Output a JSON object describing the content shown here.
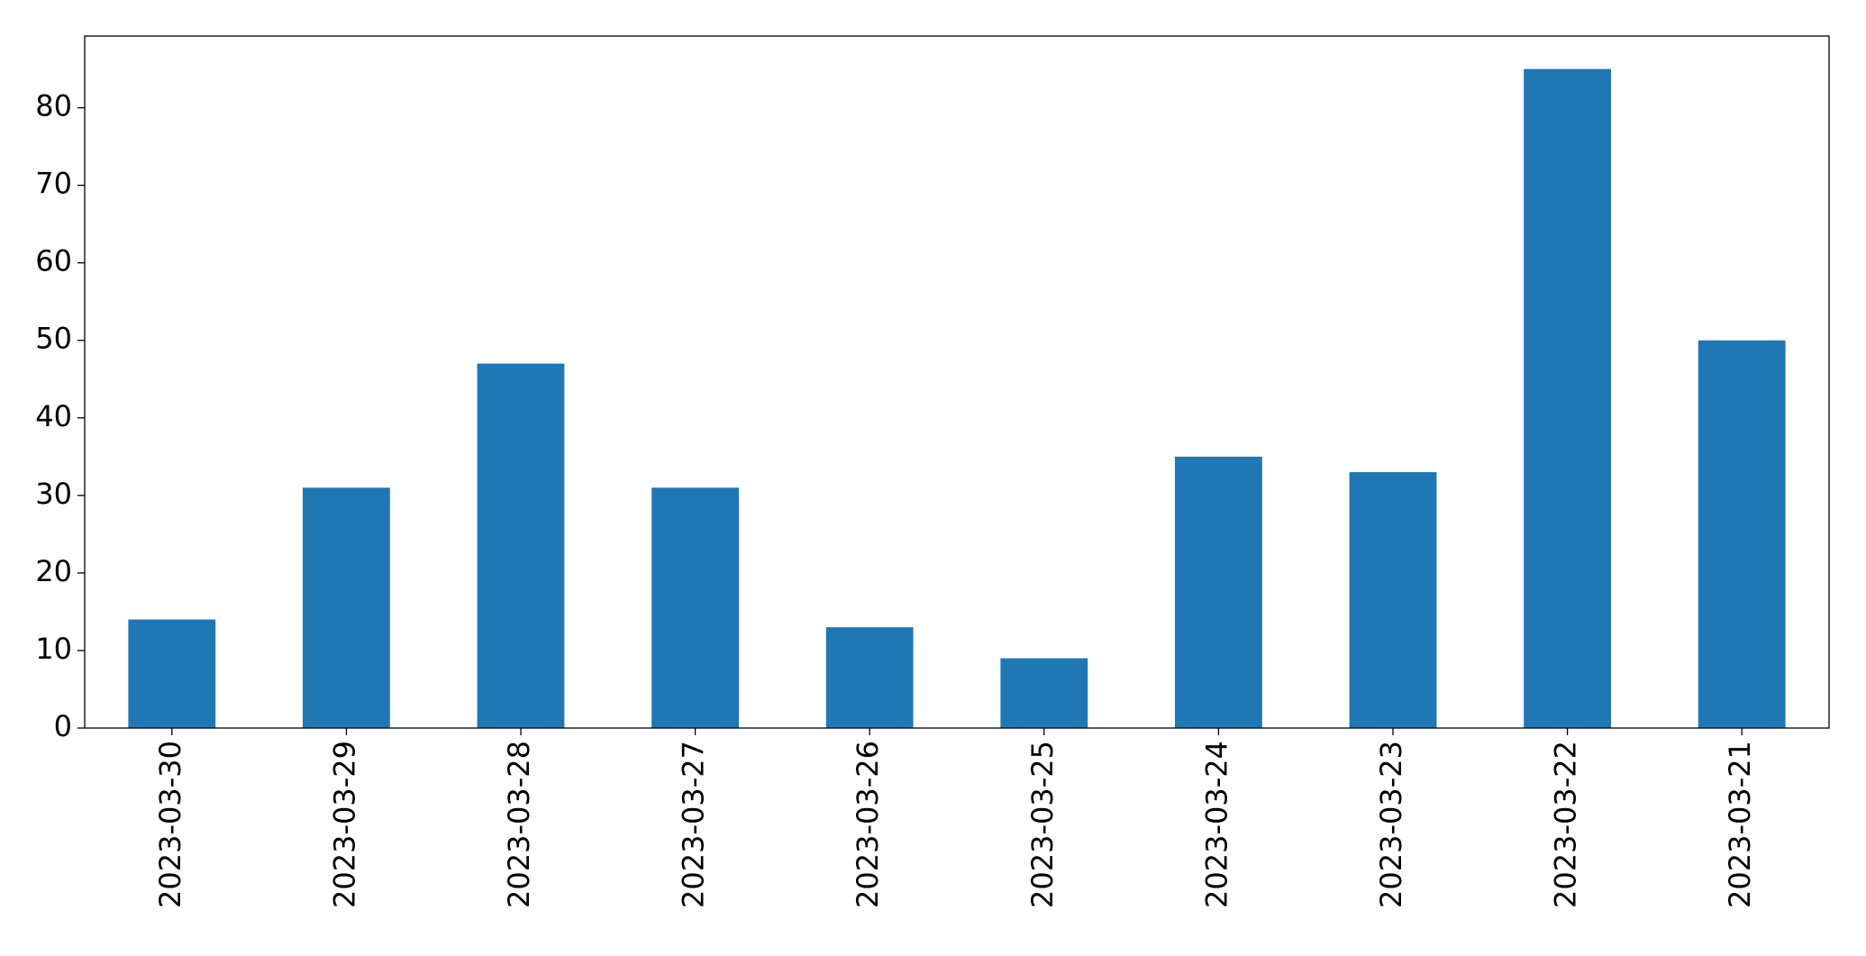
{
  "chart_data": {
    "type": "bar",
    "categories": [
      "2023-03-30",
      "2023-03-29",
      "2023-03-28",
      "2023-03-27",
      "2023-03-26",
      "2023-03-25",
      "2023-03-24",
      "2023-03-23",
      "2023-03-22",
      "2023-03-21"
    ],
    "values": [
      14,
      31,
      47,
      31,
      13,
      9,
      35,
      33,
      85,
      50
    ],
    "color": "#1f77b4",
    "ylim": [
      0,
      89.25
    ],
    "yticks": [
      0,
      10,
      20,
      30,
      40,
      50,
      60,
      70,
      80
    ],
    "grid": false
  }
}
